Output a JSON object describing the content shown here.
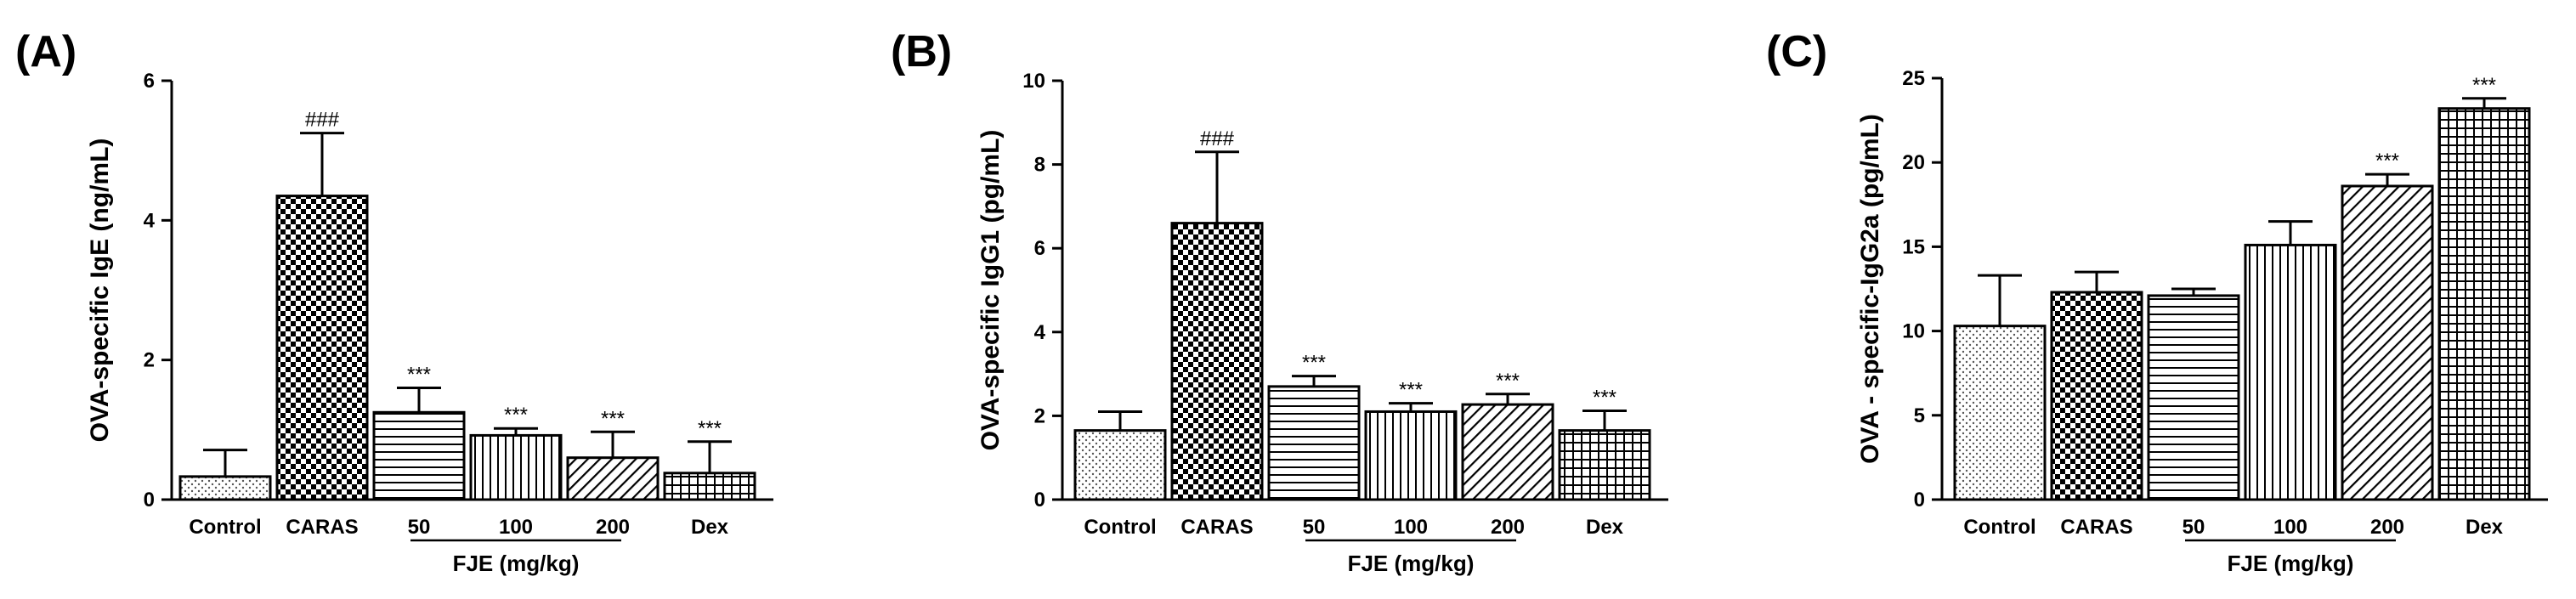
{
  "chart_data": [
    {
      "type": "bar",
      "panel_label": "(A)",
      "ylabel": "OVA-specific IgE (ng/mL)",
      "xlabel": "FJE (mg/kg)",
      "categories": [
        "Control",
        "CARAS",
        "50",
        "100",
        "200",
        "Dex"
      ],
      "values": [
        0.33,
        4.35,
        1.25,
        0.92,
        0.6,
        0.38
      ],
      "errors": [
        0.38,
        0.9,
        0.35,
        0.1,
        0.37,
        0.45
      ],
      "annotations": [
        "",
        "###",
        "***",
        "***",
        "***",
        "***"
      ],
      "patterns": [
        "dots",
        "checker",
        "hlines",
        "vlines",
        "diag",
        "grid"
      ],
      "ylim": [
        0,
        6
      ],
      "yticks": [
        "0",
        "2",
        "4",
        "6"
      ]
    },
    {
      "type": "bar",
      "panel_label": "(B)",
      "ylabel": "OVA-specific IgG1 (pg/mL)",
      "xlabel": "FJE (mg/kg)",
      "categories": [
        "Control",
        "CARAS",
        "50",
        "100",
        "200",
        "Dex"
      ],
      "values": [
        1.65,
        6.6,
        2.7,
        2.1,
        2.27,
        1.65
      ],
      "errors": [
        0.45,
        1.7,
        0.25,
        0.2,
        0.25,
        0.47
      ],
      "annotations": [
        "",
        "###",
        "***",
        "***",
        "***",
        "***"
      ],
      "patterns": [
        "dots",
        "checker",
        "hlines",
        "vlines",
        "diag",
        "grid"
      ],
      "ylim": [
        0,
        10
      ],
      "yticks": [
        "0",
        "2",
        "4",
        "6",
        "8",
        "10"
      ]
    },
    {
      "type": "bar",
      "panel_label": "(C)",
      "ylabel": "OVA - specific-IgG2a (pg/mL)",
      "xlabel": "FJE (mg/kg)",
      "categories": [
        "Control",
        "CARAS",
        "50",
        "100",
        "200",
        "Dex"
      ],
      "values": [
        10.3,
        12.3,
        12.1,
        15.1,
        18.6,
        23.2
      ],
      "errors": [
        3.0,
        1.2,
        0.4,
        1.4,
        0.7,
        0.6
      ],
      "annotations": [
        "",
        "",
        "",
        "",
        "***",
        "***"
      ],
      "patterns": [
        "dots",
        "checker",
        "hlines",
        "vlines",
        "diag",
        "grid"
      ],
      "ylim": [
        0,
        25
      ],
      "yticks": [
        "0",
        "5",
        "10",
        "15",
        "20",
        "25"
      ]
    }
  ]
}
